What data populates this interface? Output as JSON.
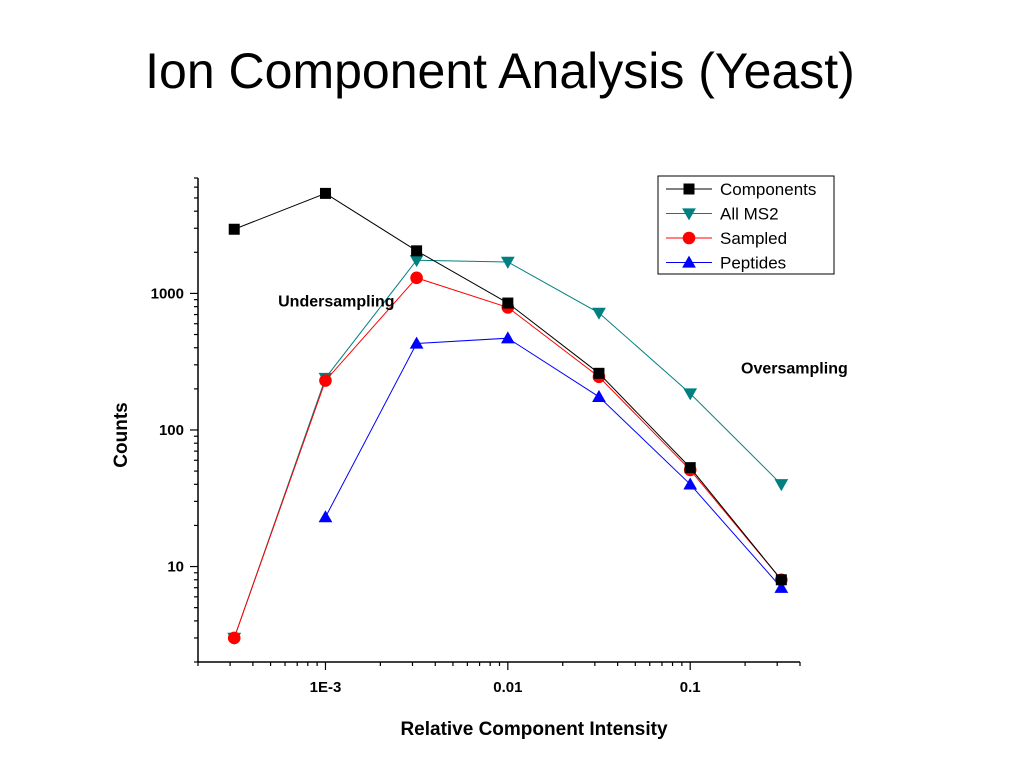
{
  "title": "Ion Component Analysis (Yeast)",
  "chart_data": {
    "type": "line",
    "title": "Ion Component Analysis (Yeast)",
    "xlabel": "Relative Component Intensity",
    "ylabel": "Counts",
    "xscale": "log",
    "yscale": "log",
    "xlim": [
      0.0002,
      0.4
    ],
    "ylim": [
      2,
      7000
    ],
    "x_ticks": [
      {
        "value": 0.001,
        "label": "1E-3"
      },
      {
        "value": 0.01,
        "label": "0.01"
      },
      {
        "value": 0.1,
        "label": "0.1"
      }
    ],
    "y_ticks": [
      {
        "value": 10,
        "label": "10"
      },
      {
        "value": 100,
        "label": "100"
      },
      {
        "value": 1000,
        "label": "1000"
      }
    ],
    "legend_position": "top-right",
    "grid": false,
    "annotations": [
      {
        "text": "Undersampling",
        "x": 0.00055,
        "y": 800
      },
      {
        "text": "Oversampling",
        "x": 0.19,
        "y": 260
      }
    ],
    "series": [
      {
        "name": "Components",
        "color": "#000000",
        "marker": "square",
        "x": [
          0.000316,
          0.001,
          0.00316,
          0.01,
          0.0316,
          0.1,
          0.316
        ],
        "y": [
          2950,
          5400,
          2050,
          850,
          260,
          53,
          8
        ]
      },
      {
        "name": "All MS2",
        "color": "#008080",
        "marker": "triangle-down",
        "x": [
          0.000316,
          0.001,
          0.00316,
          0.01,
          0.0316,
          0.1,
          0.316
        ],
        "y": [
          3,
          240,
          1750,
          1700,
          720,
          185,
          40
        ]
      },
      {
        "name": "Sampled",
        "color": "#ff0000",
        "marker": "circle",
        "x": [
          0.000316,
          0.001,
          0.00316,
          0.01,
          0.0316,
          0.1,
          0.316
        ],
        "y": [
          3,
          230,
          1300,
          790,
          245,
          51,
          8
        ]
      },
      {
        "name": "Peptides",
        "color": "#0000ff",
        "marker": "triangle-up",
        "x": [
          0.001,
          0.00316,
          0.01,
          0.0316,
          0.1,
          0.316
        ],
        "y": [
          23,
          430,
          470,
          175,
          40,
          7
        ]
      }
    ]
  }
}
